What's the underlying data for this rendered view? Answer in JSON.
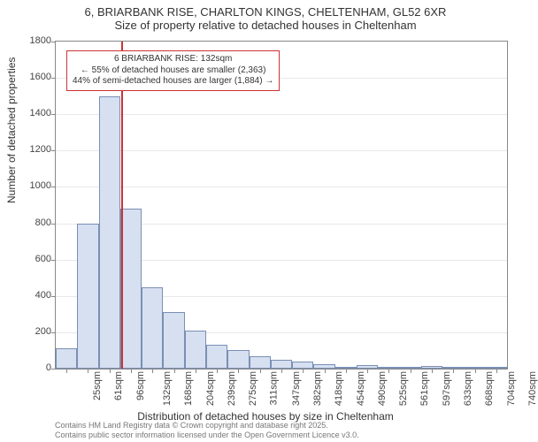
{
  "title": {
    "line1": "6, BRIARBANK RISE, CHARLTON KINGS, CHELTENHAM, GL52 6XR",
    "line2": "Size of property relative to detached houses in Cheltenham",
    "fontsize": 13,
    "color": "#333333"
  },
  "chart": {
    "type": "histogram",
    "background_color": "#ffffff",
    "grid_color": "#e8e8e8",
    "axis_color": "#888888",
    "bar_fill": "#d6e0f0",
    "bar_border": "#7a8fb5",
    "yaxis": {
      "label": "Number of detached properties",
      "min": 0,
      "max": 1800,
      "ticks": [
        0,
        200,
        400,
        600,
        800,
        1000,
        1200,
        1400,
        1600,
        1800
      ],
      "label_fontsize": 12,
      "tick_fontsize": 11
    },
    "xaxis": {
      "label": "Distribution of detached houses by size in Cheltenham",
      "categories": [
        "25sqm",
        "61sqm",
        "96sqm",
        "132sqm",
        "168sqm",
        "204sqm",
        "239sqm",
        "275sqm",
        "311sqm",
        "347sqm",
        "382sqm",
        "418sqm",
        "454sqm",
        "490sqm",
        "525sqm",
        "561sqm",
        "597sqm",
        "633sqm",
        "668sqm",
        "704sqm",
        "740sqm"
      ],
      "label_fontsize": 12,
      "tick_fontsize": 11
    },
    "values": [
      110,
      800,
      1500,
      880,
      450,
      310,
      210,
      130,
      100,
      70,
      50,
      40,
      25,
      10,
      18,
      10,
      10,
      15,
      5,
      2,
      5
    ],
    "marker": {
      "category_index": 3,
      "value_sqm": 132,
      "color": "#cc3333"
    },
    "annotation": {
      "line1": "6 BRIARBANK RISE: 132sqm",
      "line2": "← 55% of detached houses are smaller (2,363)",
      "line3": "44% of semi-detached houses are larger (1,884) →",
      "border_color": "#cc3333",
      "background": "#ffffff",
      "fontsize": 10
    }
  },
  "footer": {
    "line1": "Contains HM Land Registry data © Crown copyright and database right 2025.",
    "line2": "Contains public sector information licensed under the Open Government Licence v3.0.",
    "fontsize": 9,
    "color": "#777777"
  }
}
